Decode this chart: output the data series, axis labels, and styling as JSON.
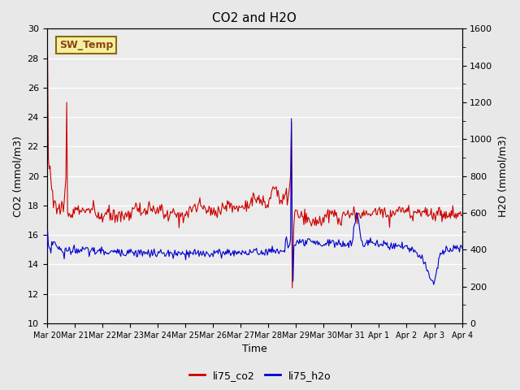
{
  "title": "CO2 and H2O",
  "xlabel": "Time",
  "ylabel_left": "CO2 (mmol/m3)",
  "ylabel_right": "H2O (mmol/m3)",
  "annotation_text": "SW_Temp",
  "annotation_bg": "#f5f0a0",
  "annotation_edge": "#8B6914",
  "co2_color": "#cc0000",
  "h2o_color": "#0000cc",
  "background_color": "#e8e8e8",
  "plot_bg": "#ebebeb",
  "ylim_left": [
    10,
    30
  ],
  "ylim_right": [
    0,
    1600
  ],
  "yticks_left": [
    10,
    12,
    14,
    16,
    18,
    20,
    22,
    24,
    26,
    28,
    30
  ],
  "yticks_right": [
    0,
    200,
    400,
    600,
    800,
    1000,
    1200,
    1400,
    1600
  ],
  "x_tick_labels": [
    "Mar 20",
    "Mar 21",
    "Mar 22",
    "Mar 23",
    "Mar 24",
    "Mar 25",
    "Mar 26",
    "Mar 27",
    "Mar 28",
    "Mar 29",
    "Mar 30",
    "Mar 31",
    "Apr 1",
    "Apr 2",
    "Apr 3",
    "Apr 4"
  ],
  "legend_entries": [
    "li75_co2",
    "li75_h2o"
  ]
}
